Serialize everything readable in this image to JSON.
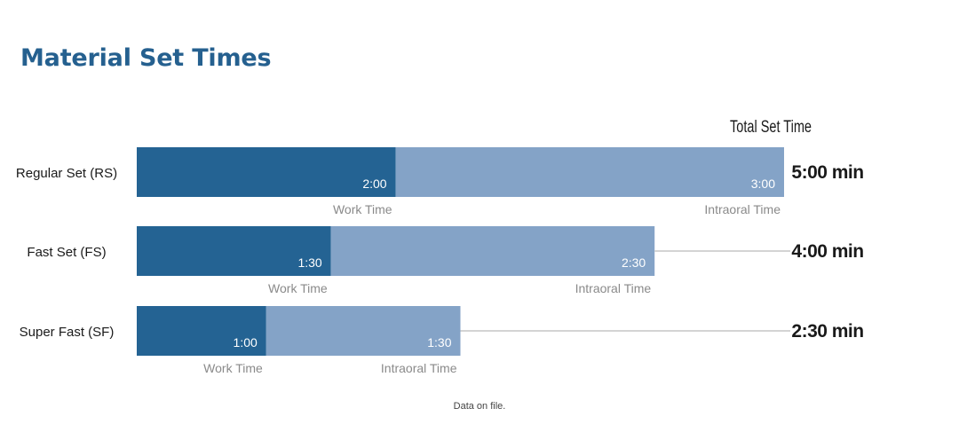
{
  "title": "Material Set Times",
  "footnote": "Data on file.",
  "chart_data": {
    "type": "bar",
    "orientation": "horizontal",
    "stacked": true,
    "total_header": "Total Set Time",
    "categories": [
      "Regular Set (RS)",
      "Fast Set (FS)",
      "Super Fast (SF)"
    ],
    "series": [
      {
        "name": "Work Time",
        "values": [
          2.0,
          1.5,
          1.0
        ],
        "labels": [
          "2:00",
          "1:30",
          "1:00"
        ],
        "color": "#246393"
      },
      {
        "name": "Intraoral Time",
        "values": [
          3.0,
          2.5,
          1.5
        ],
        "labels": [
          "3:00",
          "2:30",
          "1:30"
        ],
        "color": "#84a3c7"
      }
    ],
    "totals": [
      "5:00 min",
      "4:00 min",
      "2:30 min"
    ],
    "xlim": [
      0,
      5
    ],
    "grid": false
  }
}
